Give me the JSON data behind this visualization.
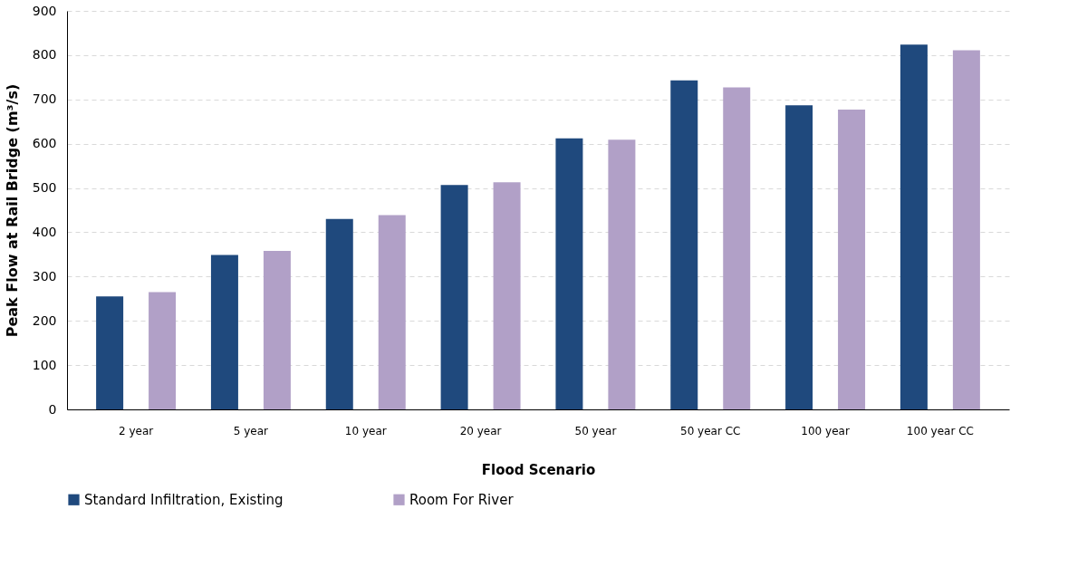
{
  "chart_data": {
    "type": "bar",
    "xlabel": "Flood Scenario",
    "ylabel": "Peak Flow at Rail Bridge (m³/s)",
    "categories": [
      "2 year",
      "5 year",
      "10 year",
      "20 year",
      "50 year",
      "50 year CC",
      "100 year",
      "100 year CC"
    ],
    "series": [
      {
        "name": "Standard Infiltration, Existing",
        "color": "#1f497d",
        "values": [
          255,
          349,
          430,
          507,
          612,
          743,
          687,
          824
        ]
      },
      {
        "name": "Room For River",
        "color": "#b1a0c7",
        "values": [
          265,
          358,
          439,
          513,
          609,
          727,
          677,
          811
        ]
      }
    ],
    "ylim": [
      0,
      900
    ],
    "yticks": [
      0,
      100,
      200,
      300,
      400,
      500,
      600,
      700,
      800,
      900
    ],
    "grid": "y",
    "legend": "bottom"
  }
}
